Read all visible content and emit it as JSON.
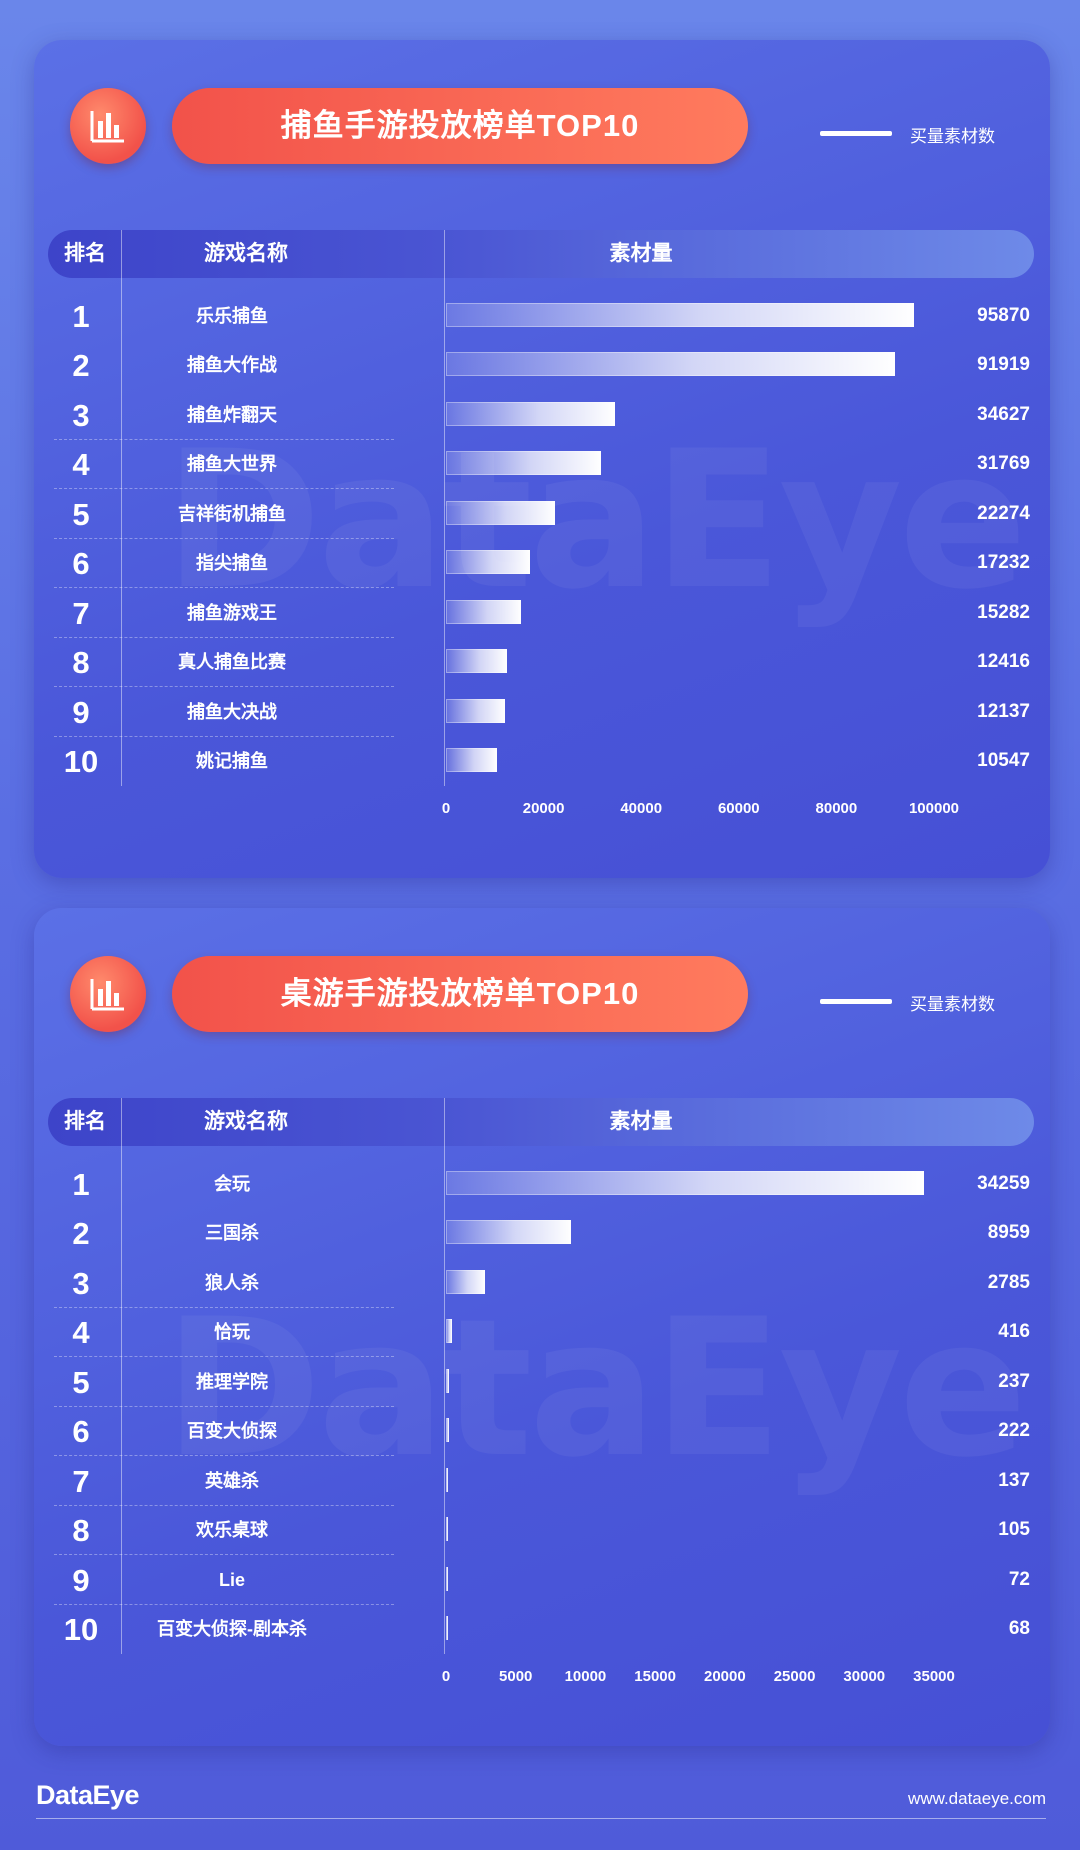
{
  "legend_label": "买量素材数",
  "header": {
    "rank": "排名",
    "name": "游戏名称",
    "material": "素材量"
  },
  "watermark": "DataEye",
  "footer": {
    "logo": "DataEye",
    "url": "www.dataeye.com"
  },
  "chart_data": [
    {
      "type": "bar",
      "title": "捕鱼手游投放榜单TOP10",
      "ranks": [
        "1",
        "2",
        "3",
        "4",
        "5",
        "6",
        "7",
        "8",
        "9",
        "10"
      ],
      "categories": [
        "乐乐捕鱼",
        "捕鱼大作战",
        "捕鱼炸翻天",
        "捕鱼大世界",
        "吉祥街机捕鱼",
        "指尖捕鱼",
        "捕鱼游戏王",
        "真人捕鱼比赛",
        "捕鱼大决战",
        "姚记捕鱼"
      ],
      "series": [
        {
          "name": "买量素材数",
          "values": [
            95870,
            91919,
            34627,
            31769,
            22274,
            17232,
            15282,
            12416,
            12137,
            10547
          ]
        }
      ],
      "xlim": [
        0,
        100000
      ],
      "ticks": [
        0,
        20000,
        40000,
        60000,
        80000,
        100000
      ],
      "orientation": "horizontal",
      "legend_position": "top-right"
    },
    {
      "type": "bar",
      "title": "桌游手游投放榜单TOP10",
      "ranks": [
        "1",
        "2",
        "3",
        "4",
        "5",
        "6",
        "7",
        "8",
        "9",
        "10"
      ],
      "categories": [
        "会玩",
        "三国杀",
        "狼人杀",
        "恰玩",
        "推理学院",
        "百变大侦探",
        "英雄杀",
        "欢乐桌球",
        "Lie",
        "百变大侦探-剧本杀"
      ],
      "series": [
        {
          "name": "买量素材数",
          "values": [
            34259,
            8959,
            2785,
            416,
            237,
            222,
            137,
            105,
            72,
            68
          ]
        }
      ],
      "xlim": [
        0,
        35000
      ],
      "ticks": [
        0,
        5000,
        10000,
        15000,
        20000,
        25000,
        30000,
        35000
      ],
      "orientation": "horizontal",
      "legend_position": "top-right"
    }
  ]
}
